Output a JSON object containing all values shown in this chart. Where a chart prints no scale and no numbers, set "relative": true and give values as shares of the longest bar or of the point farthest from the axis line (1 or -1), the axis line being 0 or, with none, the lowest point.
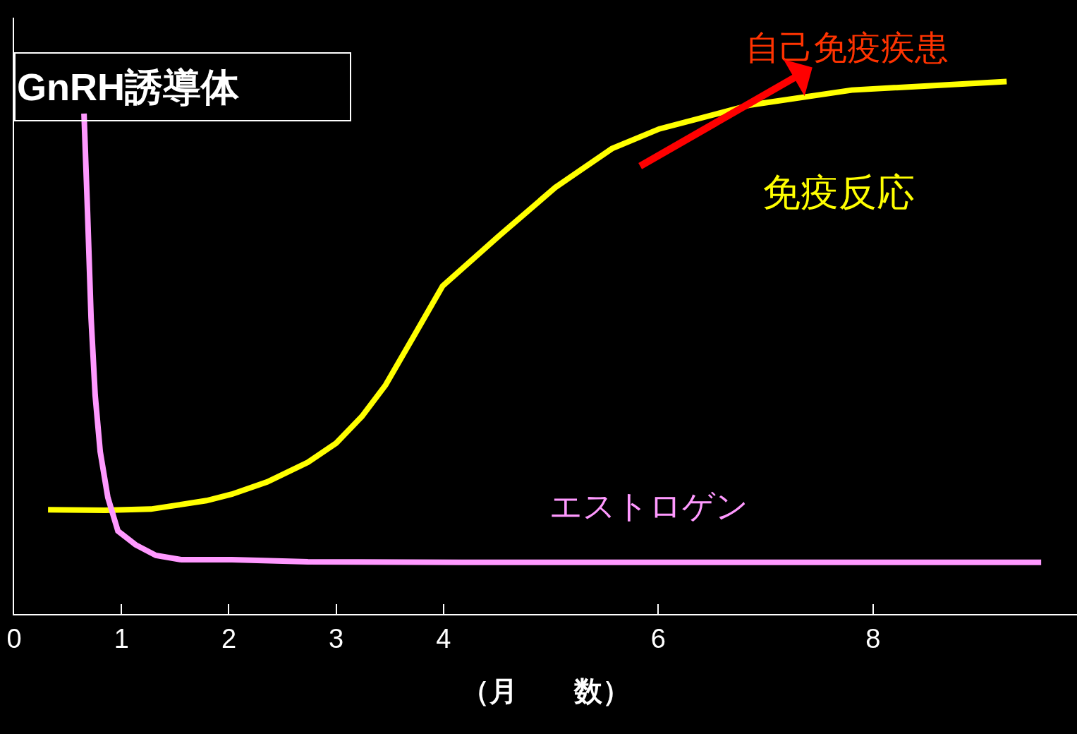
{
  "chart_data": {
    "type": "line",
    "relative": true,
    "xlabel": "（月　　数）",
    "xlim": [
      0,
      9.9
    ],
    "xticks": [
      0,
      1,
      2,
      3,
      4,
      6,
      8
    ],
    "tick_labels": "x",
    "grid": false,
    "legend": false,
    "marker": "none",
    "line_style": "solid",
    "annotations": [
      "GnRH誘導体",
      "自己免疫疾患"
    ],
    "series": [
      {
        "name": "免疫反応",
        "color": "#ffff00",
        "x": [
          0.316,
          0.849,
          1.274,
          1.792,
          2.028,
          2.358,
          2.736,
          3.0,
          3.239,
          3.46,
          3.726,
          3.991,
          4.511,
          5.04,
          5.568,
          6.009,
          6.858,
          7.802,
          9.245
        ],
        "values": [
          0.196,
          0.195,
          0.197,
          0.213,
          0.225,
          0.248,
          0.285,
          0.321,
          0.371,
          0.43,
          0.523,
          0.616,
          0.709,
          0.801,
          0.874,
          0.911,
          0.956,
          0.984,
          1.0
        ]
      },
      {
        "name": "エストロゲン",
        "color": "#ff99ff",
        "x": [
          0.651,
          0.684,
          0.717,
          0.755,
          0.802,
          0.873,
          0.967,
          1.132,
          1.321,
          1.557,
          2.028,
          2.736,
          4.159,
          9.566
        ],
        "values": [
          0.94,
          0.755,
          0.556,
          0.411,
          0.305,
          0.219,
          0.156,
          0.13,
          0.11,
          0.102,
          0.102,
          0.098,
          0.097,
          0.097
        ]
      }
    ]
  }
}
